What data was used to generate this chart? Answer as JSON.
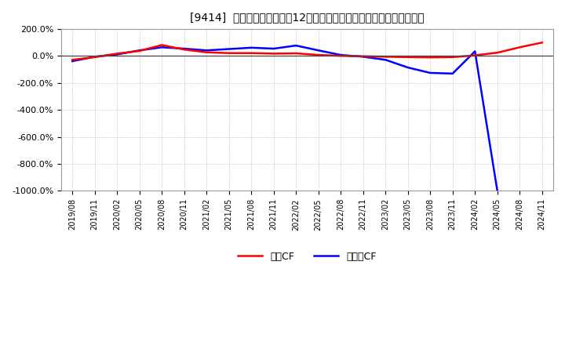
{
  "title": "[9414]  キャッシュフローの12か月移動合計の対前年同期増減率の推移",
  "x_labels": [
    "2019/08",
    "2019/11",
    "2020/02",
    "2020/05",
    "2020/08",
    "2020/11",
    "2021/02",
    "2021/05",
    "2021/08",
    "2021/11",
    "2022/02",
    "2022/05",
    "2022/08",
    "2022/11",
    "2023/02",
    "2023/05",
    "2023/08",
    "2023/11",
    "2024/02",
    "2024/05",
    "2024/08",
    "2024/11"
  ],
  "operating_cf": [
    -0.28,
    -0.08,
    0.18,
    0.38,
    0.82,
    0.48,
    0.28,
    0.22,
    0.22,
    0.18,
    0.2,
    0.08,
    0.02,
    -0.02,
    -0.05,
    -0.08,
    -0.1,
    -0.08,
    0.05,
    0.25,
    0.65,
    1.0
  ],
  "free_cf": [
    -0.38,
    -0.05,
    0.12,
    0.42,
    0.65,
    0.55,
    0.42,
    0.52,
    0.62,
    0.55,
    0.78,
    0.42,
    0.08,
    -0.05,
    -0.28,
    -0.85,
    -1.25,
    -1.3,
    0.35,
    -10.0,
    null,
    null
  ],
  "ylim": [
    -10.0,
    2.0
  ],
  "yticks": [
    2.0,
    0.0,
    -2.0,
    -4.0,
    -6.0,
    -8.0,
    -10.0
  ],
  "ytick_labels": [
    "200.0%",
    "0.0%",
    "-200.0%",
    "-400.0%",
    "-600.0%",
    "-800.0%",
    "-1000.0%"
  ],
  "operating_color": "#ff0000",
  "free_color": "#0000ff",
  "background_color": "#ffffff",
  "grid_color": "#aaaaaa",
  "legend_operating": "営業CF",
  "legend_free": "フリーCF"
}
